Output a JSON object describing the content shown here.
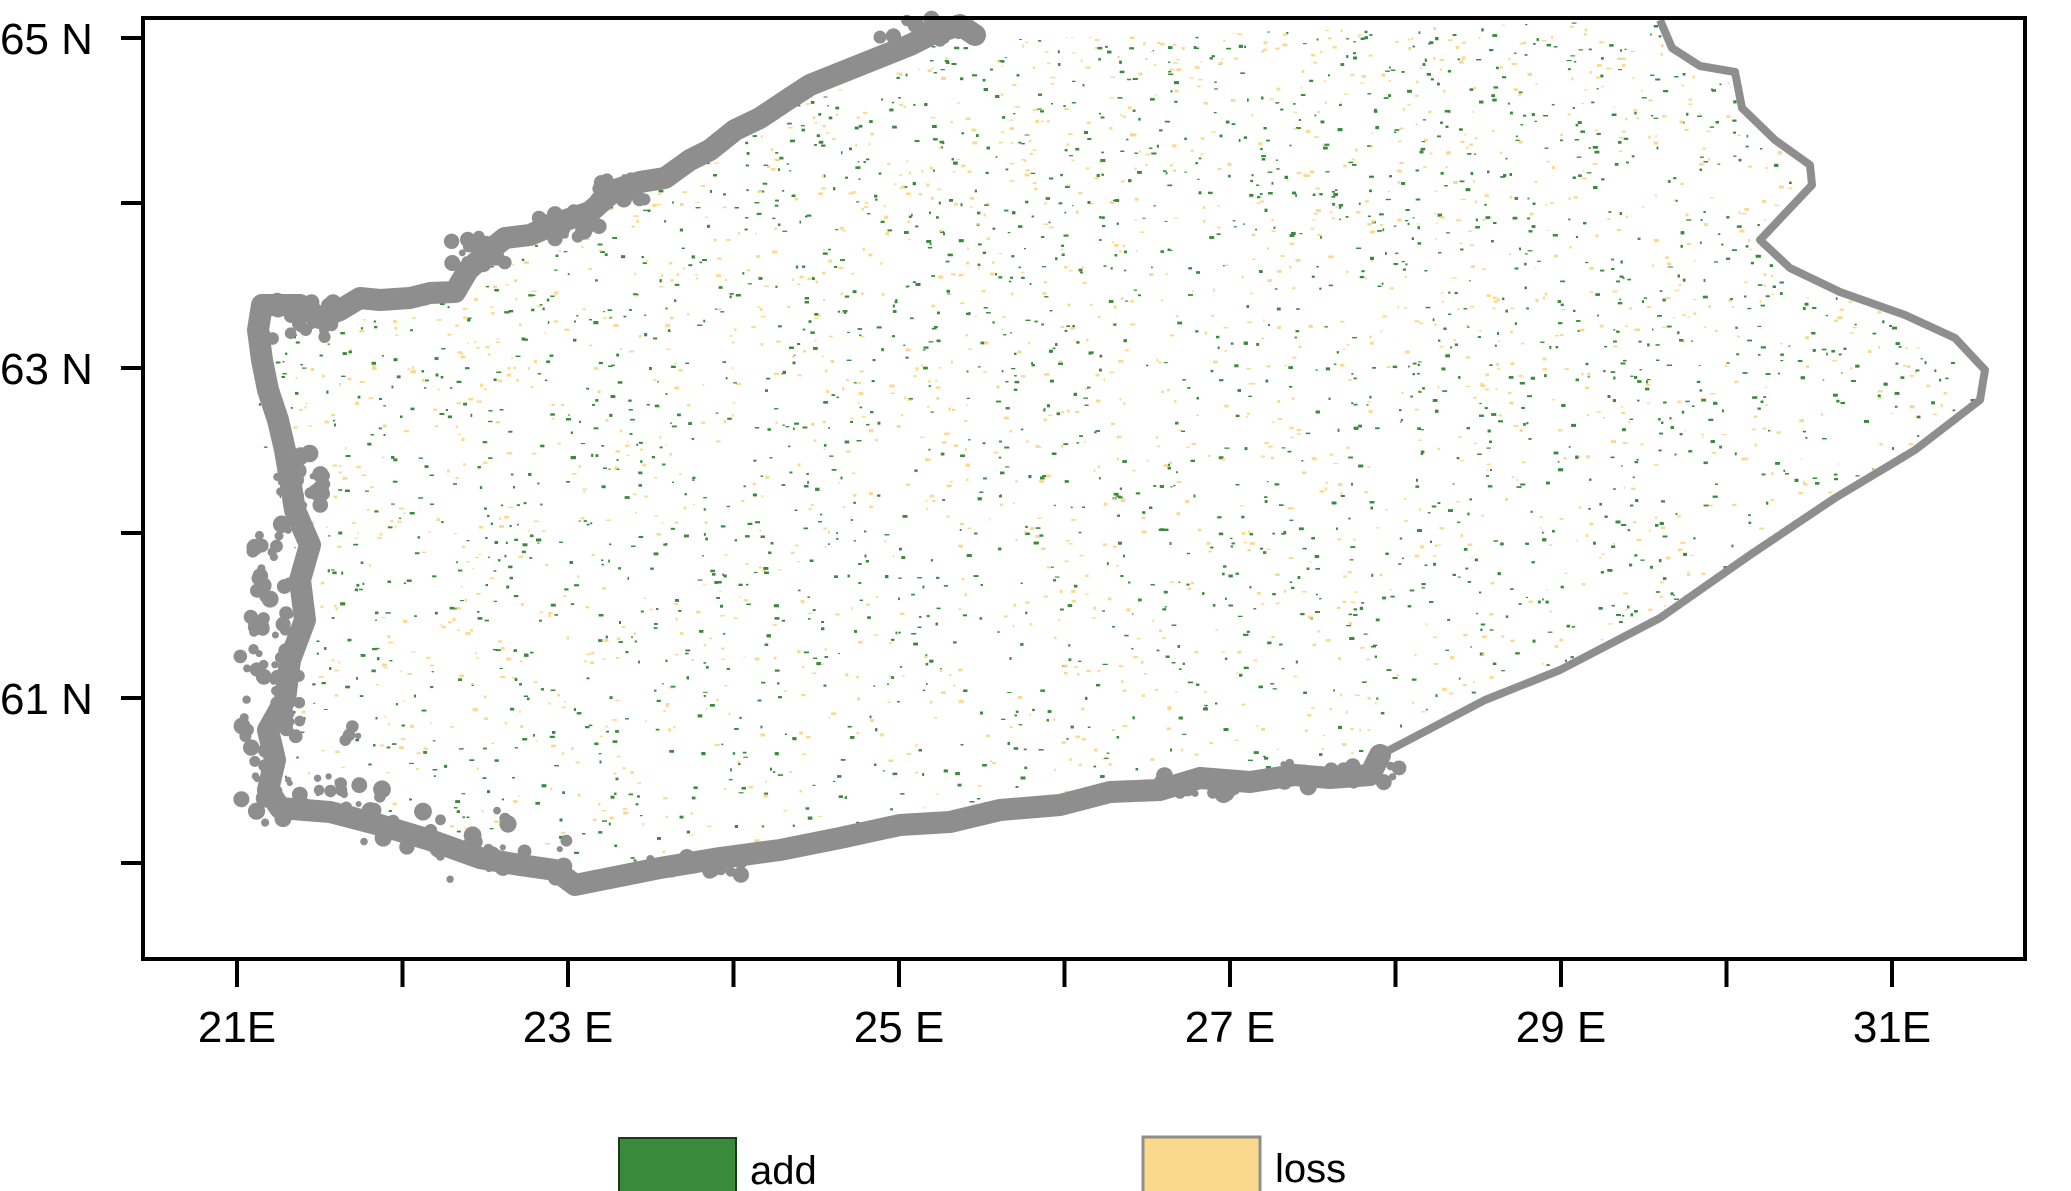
{
  "map": {
    "latitude_labels": [
      "65 N",
      "63 N",
      "61 N"
    ],
    "longitude_labels": [
      "21E",
      "23 E",
      "25 E",
      "27 E",
      "29 E",
      "31E"
    ],
    "extent": {
      "lon_min": 20.45,
      "lon_max": 31.8,
      "lat_min": 59.45,
      "lat_max": 65.12
    },
    "lat_ticks": [
      65,
      64,
      63,
      62,
      61,
      60
    ],
    "lon_ticks": [
      21,
      22,
      23,
      24,
      25,
      26,
      27,
      28,
      29,
      30,
      31
    ],
    "colors": {
      "add": "#3a8a3c",
      "loss": "#fbd98c",
      "coast": "#8e8e8e",
      "frame": "#000000"
    }
  },
  "legend": {
    "items": [
      {
        "label": "add",
        "color": "#3a8a3c"
      },
      {
        "label": "loss",
        "color": "#fbd98c"
      }
    ]
  }
}
